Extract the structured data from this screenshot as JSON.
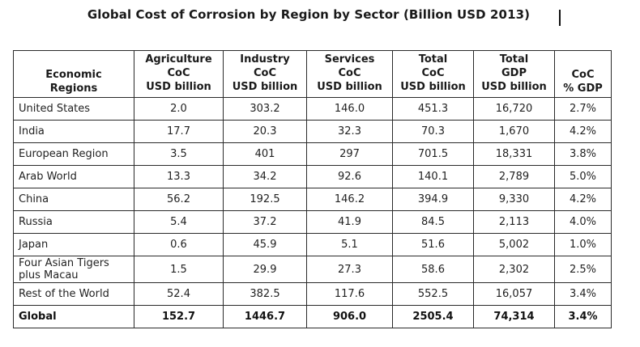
{
  "title": "Global Cost of Corrosion by Region by Sector (Billion USD 2013)",
  "table": {
    "headers": [
      [
        "Economic",
        "Regions"
      ],
      [
        "Agriculture",
        "CoC",
        "USD billion"
      ],
      [
        "Industry",
        "CoC",
        "USD billion"
      ],
      [
        "Services",
        "CoC",
        "USD billion"
      ],
      [
        "Total",
        "CoC",
        "USD billion"
      ],
      [
        "Total",
        "GDP",
        "USD billion"
      ],
      [
        "CoC",
        "% GDP"
      ]
    ],
    "rows": [
      {
        "region": "United States",
        "agriculture": "2.0",
        "industry": "303.2",
        "services": "146.0",
        "total_coc": "451.3",
        "total_gdp": "16,720",
        "coc_pct_gdp": "2.7%"
      },
      {
        "region": "India",
        "agriculture": "17.7",
        "industry": "20.3",
        "services": "32.3",
        "total_coc": "70.3",
        "total_gdp": "1,670",
        "coc_pct_gdp": "4.2%"
      },
      {
        "region": "European Region",
        "agriculture": "3.5",
        "industry": "401",
        "services": "297",
        "total_coc": "701.5",
        "total_gdp": "18,331",
        "coc_pct_gdp": "3.8%"
      },
      {
        "region": "Arab World",
        "agriculture": "13.3",
        "industry": "34.2",
        "services": "92.6",
        "total_coc": "140.1",
        "total_gdp": "2,789",
        "coc_pct_gdp": "5.0%"
      },
      {
        "region": "China",
        "agriculture": "56.2",
        "industry": "192.5",
        "services": "146.2",
        "total_coc": "394.9",
        "total_gdp": "9,330",
        "coc_pct_gdp": "4.2%"
      },
      {
        "region": "Russia",
        "agriculture": "5.4",
        "industry": "37.2",
        "services": "41.9",
        "total_coc": "84.5",
        "total_gdp": "2,113",
        "coc_pct_gdp": "4.0%"
      },
      {
        "region": "Japan",
        "agriculture": "0.6",
        "industry": "45.9",
        "services": "5.1",
        "total_coc": "51.6",
        "total_gdp": "5,002",
        "coc_pct_gdp": "1.0%"
      },
      {
        "region": "Four Asian Tigers plus Macau",
        "region_lines": [
          "Four Asian Tigers",
          "plus Macau"
        ],
        "agriculture": "1.5",
        "industry": "29.9",
        "services": "27.3",
        "total_coc": "58.6",
        "total_gdp": "2,302",
        "coc_pct_gdp": "2.5%"
      },
      {
        "region": "Rest of the World",
        "agriculture": "52.4",
        "industry": "382.5",
        "services": "117.6",
        "total_coc": "552.5",
        "total_gdp": "16,057",
        "coc_pct_gdp": "3.4%"
      }
    ],
    "total": {
      "region": "Global",
      "agriculture": "152.7",
      "industry": "1446.7",
      "services": "906.0",
      "total_coc": "2505.4",
      "total_gdp": "74,314",
      "coc_pct_gdp": "3.4%"
    }
  }
}
